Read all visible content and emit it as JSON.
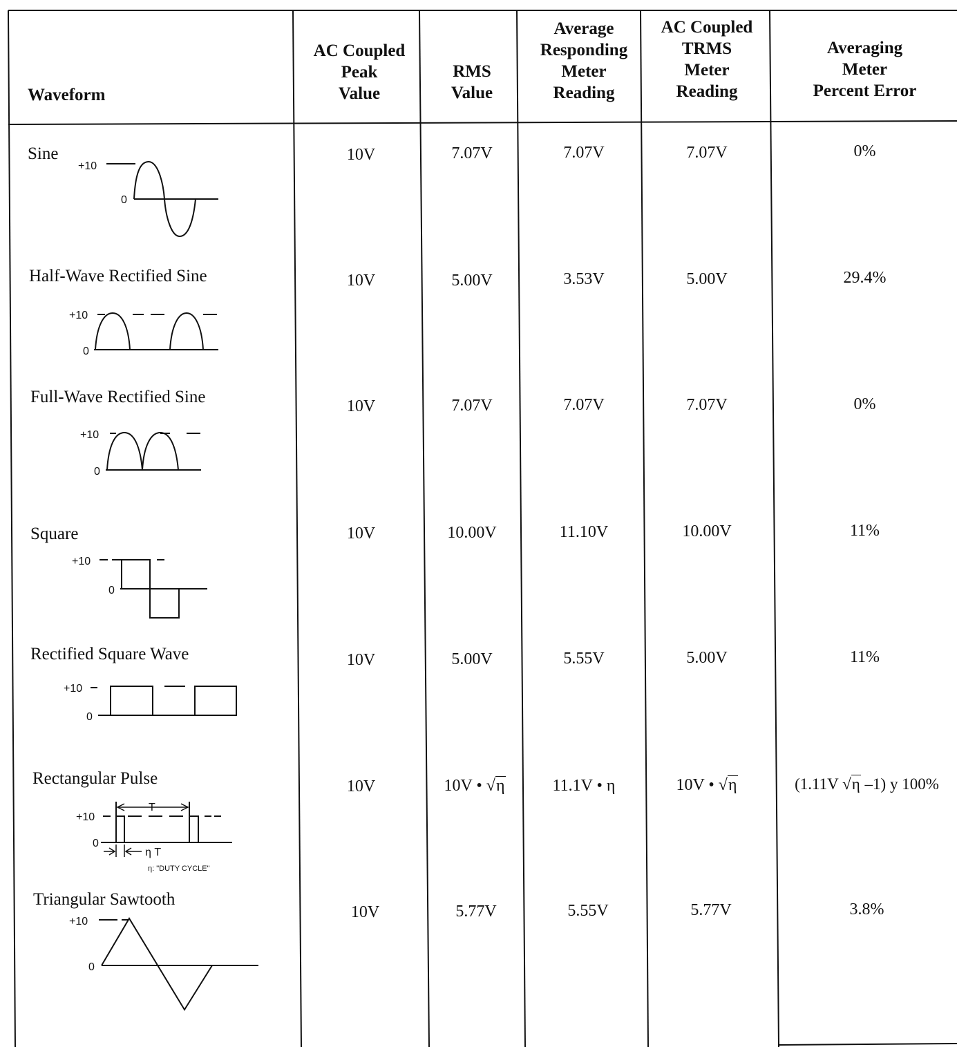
{
  "table": {
    "headers": {
      "waveform": "Waveform",
      "peak": [
        "AC Coupled",
        "Peak",
        "Value"
      ],
      "rms": [
        "RMS",
        "Value"
      ],
      "avg": [
        "Average",
        "Responding",
        "Meter",
        "Reading"
      ],
      "trms": [
        "AC Coupled",
        "TRMS",
        "Meter",
        "Reading"
      ],
      "err": [
        "Averaging",
        "Meter",
        "Percent Error"
      ]
    },
    "rows": [
      {
        "name": "Sine",
        "peak": "10V",
        "rms": "7.07V",
        "avg": "7.07V",
        "trms": "7.07V",
        "err": "0%"
      },
      {
        "name": "Half-Wave Rectified Sine",
        "peak": "10V",
        "rms": "5.00V",
        "avg": "3.53V",
        "trms": "5.00V",
        "err": "29.4%"
      },
      {
        "name": "Full-Wave Rectified Sine",
        "peak": "10V",
        "rms": "7.07V",
        "avg": "7.07V",
        "trms": "7.07V",
        "err": "0%"
      },
      {
        "name": "Square",
        "peak": "10V",
        "rms": "10.00V",
        "avg": "11.10V",
        "trms": "10.00V",
        "err": "11%"
      },
      {
        "name": "Rectified Square Wave",
        "peak": "10V",
        "rms": "5.00V",
        "avg": "5.55V",
        "trms": "5.00V",
        "err": "11%"
      },
      {
        "name": "Rectangular Pulse",
        "peak": "10V",
        "rms_prefix": "10V • ",
        "eta": "η",
        "avg": "11.1V • η",
        "trms_prefix": "10V • ",
        "err_prefix": "(1.11V ",
        "err_suffix": " –1) y 100%"
      },
      {
        "name": "Triangular Sawtooth",
        "peak": "10V",
        "rms": "5.77V",
        "avg": "5.55V",
        "trms": "5.77V",
        "err": "3.8%"
      }
    ]
  },
  "diagram_labels": {
    "plus10": "+10",
    "zero": "0",
    "tau": "T",
    "eta_tau": "η T",
    "duty_cycle": "η: \"DUTY CYCLE\""
  }
}
